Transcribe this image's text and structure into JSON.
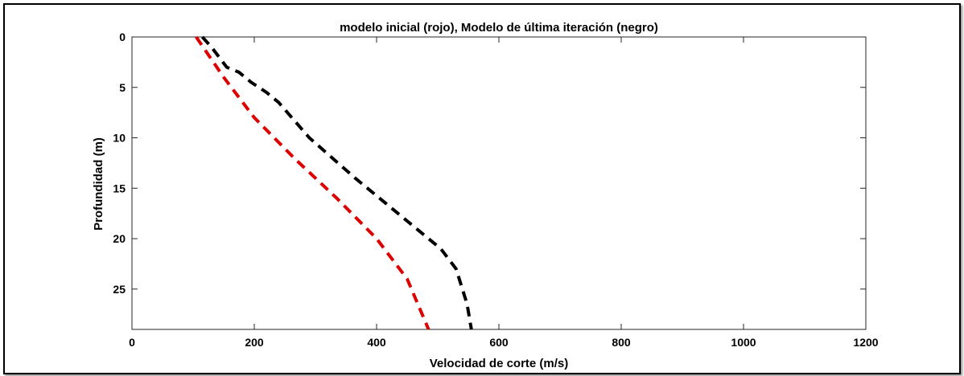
{
  "chart_data": {
    "type": "line",
    "title": "modelo inicial (rojo), Modelo de última iteración  (negro)",
    "xlabel": "Velocidad de corte (m/s)",
    "ylabel": "Profundidad (m)",
    "xlim": [
      0,
      1200
    ],
    "ylim": [
      0,
      29
    ],
    "y_reversed": true,
    "grid": false,
    "xticks": [
      0,
      200,
      400,
      600,
      800,
      1000,
      1200
    ],
    "yticks": [
      0,
      5,
      10,
      15,
      20,
      25
    ],
    "series": [
      {
        "color": "#dd0000",
        "style": "dashed",
        "x": [
          105,
          150,
          200,
          265,
          335,
          400,
          450,
          485
        ],
        "y": [
          0,
          4,
          8,
          12,
          16,
          20,
          24,
          29
        ]
      },
      {
        "color": "#000000",
        "style": "dashed",
        "x": [
          115,
          130,
          155,
          175,
          195,
          220,
          240,
          290,
          365,
          415,
          475,
          505,
          530,
          548,
          555
        ],
        "y": [
          0,
          1,
          3,
          3.5,
          4.5,
          5.5,
          6.5,
          10,
          14,
          16.5,
          19.5,
          21,
          23,
          26.5,
          29
        ]
      }
    ]
  }
}
